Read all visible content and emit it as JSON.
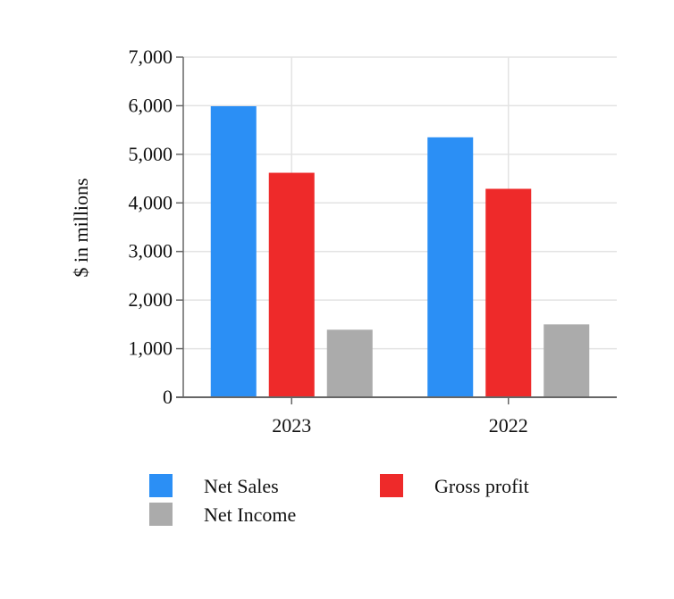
{
  "chart_data": {
    "type": "bar",
    "ylabel": "$ in millions",
    "xlabel": "",
    "categories": [
      "2023",
      "2022"
    ],
    "series": [
      {
        "name": "Net Sales",
        "color": "#2b8ff5",
        "values": [
          5990,
          5350
        ]
      },
      {
        "name": "Gross profit",
        "color": "#ee2a2a",
        "values": [
          4620,
          4290
        ]
      },
      {
        "name": "Net Income",
        "color": "#ababab",
        "values": [
          1390,
          1500
        ]
      }
    ],
    "ylim": [
      0,
      7000
    ],
    "yticks": [
      0,
      1000,
      2000,
      3000,
      4000,
      5000,
      6000,
      7000
    ],
    "ytick_labels": [
      "0",
      "1,000",
      "2,000",
      "3,000",
      "4,000",
      "5,000",
      "6,000",
      "7,000"
    ],
    "grid": true,
    "legend_position": "bottom"
  }
}
